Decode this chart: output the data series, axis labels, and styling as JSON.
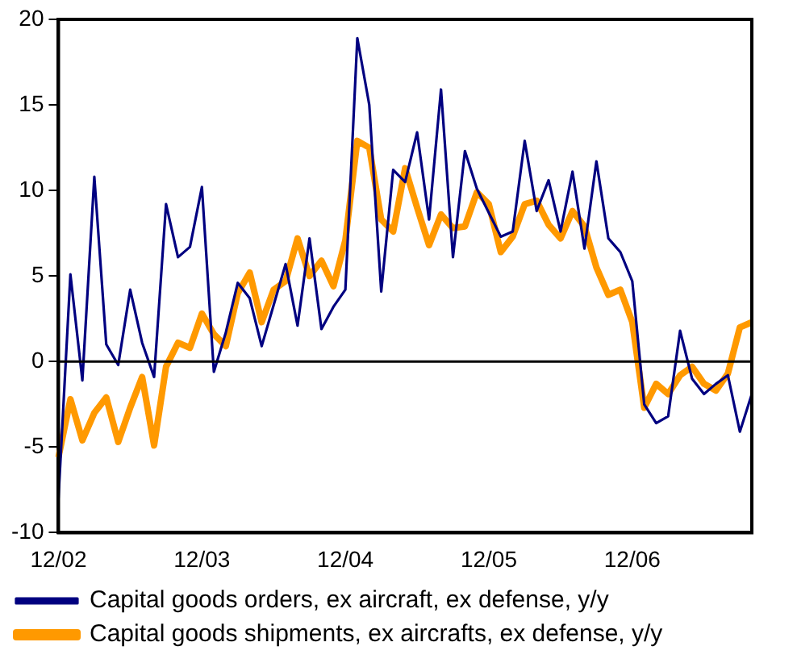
{
  "chart_data": {
    "type": "line",
    "categories": [
      "12/02",
      null,
      null,
      null,
      null,
      null,
      null,
      null,
      null,
      null,
      null,
      null,
      "12/03",
      null,
      null,
      null,
      null,
      null,
      null,
      null,
      null,
      null,
      null,
      null,
      "12/04",
      null,
      null,
      null,
      null,
      null,
      null,
      null,
      null,
      null,
      null,
      null,
      "12/05",
      null,
      null,
      null,
      null,
      null,
      null,
      null,
      null,
      null,
      null,
      null,
      "12/06",
      null,
      null,
      null,
      null,
      null,
      null,
      null,
      null,
      null,
      null
    ],
    "ylim": [
      -10,
      20
    ],
    "yticks": [
      -10,
      -5,
      0,
      5,
      10,
      15,
      20
    ],
    "grid": false,
    "legend": "bottom",
    "marker": "none",
    "line_style": "solid",
    "ref_lines": [
      {
        "axis": "y",
        "value": 0,
        "color": "#000000"
      }
    ],
    "series": [
      {
        "name": "Capital goods orders, ex aircraft, ex defense, y/y",
        "color": "#000080",
        "values": [
          -8.0,
          5.1,
          -1.1,
          10.8,
          1.0,
          -0.2,
          4.2,
          1.1,
          -0.9,
          9.2,
          6.1,
          6.7,
          10.2,
          -0.6,
          1.7,
          4.6,
          3.7,
          0.9,
          3.3,
          5.7,
          2.1,
          7.2,
          1.9,
          3.2,
          4.2,
          18.9,
          15.0,
          4.1,
          11.2,
          10.5,
          13.4,
          8.3,
          15.9,
          6.1,
          12.3,
          10.1,
          8.7,
          7.3,
          7.6,
          12.9,
          8.8,
          10.6,
          7.6,
          11.1,
          6.6,
          11.7,
          7.2,
          6.4,
          4.7,
          -2.5,
          -3.6,
          -3.2,
          1.8,
          -1.0,
          -1.9,
          -1.3,
          -0.8,
          -4.1,
          -1.9
        ]
      },
      {
        "name": "Capital goods shipments, ex aircrafts, ex defense, y/y",
        "color": "#ff9900",
        "values": [
          -5.6,
          -2.2,
          -4.6,
          -3.0,
          -2.1,
          -4.7,
          -2.7,
          -0.9,
          -4.9,
          -0.3,
          1.1,
          0.8,
          2.8,
          1.6,
          0.9,
          4.0,
          5.2,
          2.3,
          4.2,
          4.7,
          7.2,
          5.0,
          5.9,
          4.4,
          7.1,
          12.9,
          12.5,
          8.3,
          7.6,
          11.3,
          9.0,
          6.8,
          8.6,
          7.8,
          7.9,
          9.9,
          9.2,
          6.4,
          7.3,
          9.2,
          9.4,
          8.0,
          7.2,
          8.8,
          7.9,
          5.5,
          3.9,
          4.2,
          2.3,
          -2.7,
          -1.3,
          -1.9,
          -0.8,
          -0.3,
          -1.3,
          -1.7,
          -0.7,
          2.0,
          2.3
        ]
      }
    ]
  }
}
